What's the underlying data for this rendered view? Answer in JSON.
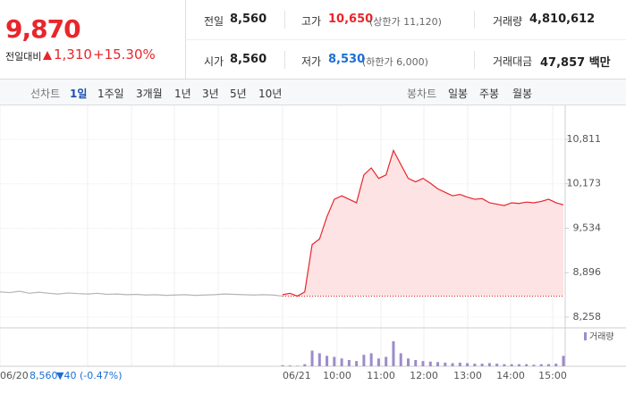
{
  "quote": {
    "price": "9,870",
    "change_label": "전일대비",
    "change": "1,310",
    "change_pct": "+15.30%"
  },
  "stats": [
    {
      "label": "전일",
      "value": "8,560"
    },
    {
      "label": "고가",
      "value": "10,650",
      "note": "(상한가 11,120)"
    },
    {
      "label": "거래량",
      "value": "4,810,612"
    },
    {
      "label": "시가",
      "value": "8,560"
    },
    {
      "label": "저가",
      "value": "8,530",
      "note": "(하한가 6,000)"
    },
    {
      "label": "거래대금",
      "value": "47,857 백만"
    }
  ],
  "tabs": {
    "line_label": "선차트",
    "line": [
      "1일",
      "1주일",
      "3개월",
      "1년",
      "3년",
      "5년",
      "10년"
    ],
    "candle_label": "봉차트",
    "candle": [
      "일봉",
      "주봉",
      "월봉"
    ]
  },
  "chart_data": {
    "type": "line",
    "ylim": [
      8168,
      11208
    ],
    "yticks": [
      {
        "value": 10811,
        "label": "10,811"
      },
      {
        "value": 10173,
        "label": "10,173"
      },
      {
        "value": 9534,
        "label": "9,534"
      },
      {
        "value": 8896,
        "label": "8,896"
      },
      {
        "value": 8258,
        "label": "8,258"
      }
    ],
    "grid": true,
    "baseline": 8560,
    "x_labels": [
      "06/20",
      "06/21",
      "10:00",
      "11:00",
      "12:00",
      "13:00",
      "14:00",
      "15:00"
    ],
    "series": [
      {
        "color": "#b5b5b5",
        "values": [
          8620,
          8610,
          8630,
          8600,
          8615,
          8600,
          8590,
          8605,
          8595,
          8590,
          8600,
          8585,
          8590,
          8580,
          8585,
          8575,
          8580,
          8570,
          8575,
          8580,
          8570,
          8575,
          8580,
          8590,
          8585,
          8580,
          8575,
          8580,
          8575,
          8560
        ]
      },
      {
        "color": "#e8262b",
        "values": [
          8580,
          8600,
          8560,
          8620,
          9300,
          9380,
          9700,
          9950,
          10000,
          9950,
          9900,
          10300,
          10400,
          10250,
          10300,
          10650,
          10450,
          10250,
          10200,
          10250,
          10180,
          10100,
          10050,
          10000,
          10020,
          9980,
          9950,
          9960,
          9900,
          9880,
          9860,
          9900,
          9890,
          9910,
          9900,
          9920,
          9950,
          9900,
          9870
        ]
      }
    ],
    "volume": {
      "name": "거래량",
      "color": "#9d8ccb",
      "ylim": [
        0,
        600000
      ],
      "values": [
        20000,
        15000,
        10000,
        40000,
        300000,
        250000,
        200000,
        180000,
        150000,
        120000,
        100000,
        220000,
        250000,
        150000,
        180000,
        480000,
        250000,
        150000,
        120000,
        100000,
        90000,
        80000,
        70000,
        60000,
        70000,
        60000,
        50000,
        50000,
        60000,
        50000,
        40000,
        40000,
        40000,
        40000,
        30000,
        40000,
        40000,
        50000,
        200000
      ]
    },
    "footer": {
      "price": "8,560",
      "change": "▼40",
      "change_pct": "(-0.47%)"
    }
  }
}
